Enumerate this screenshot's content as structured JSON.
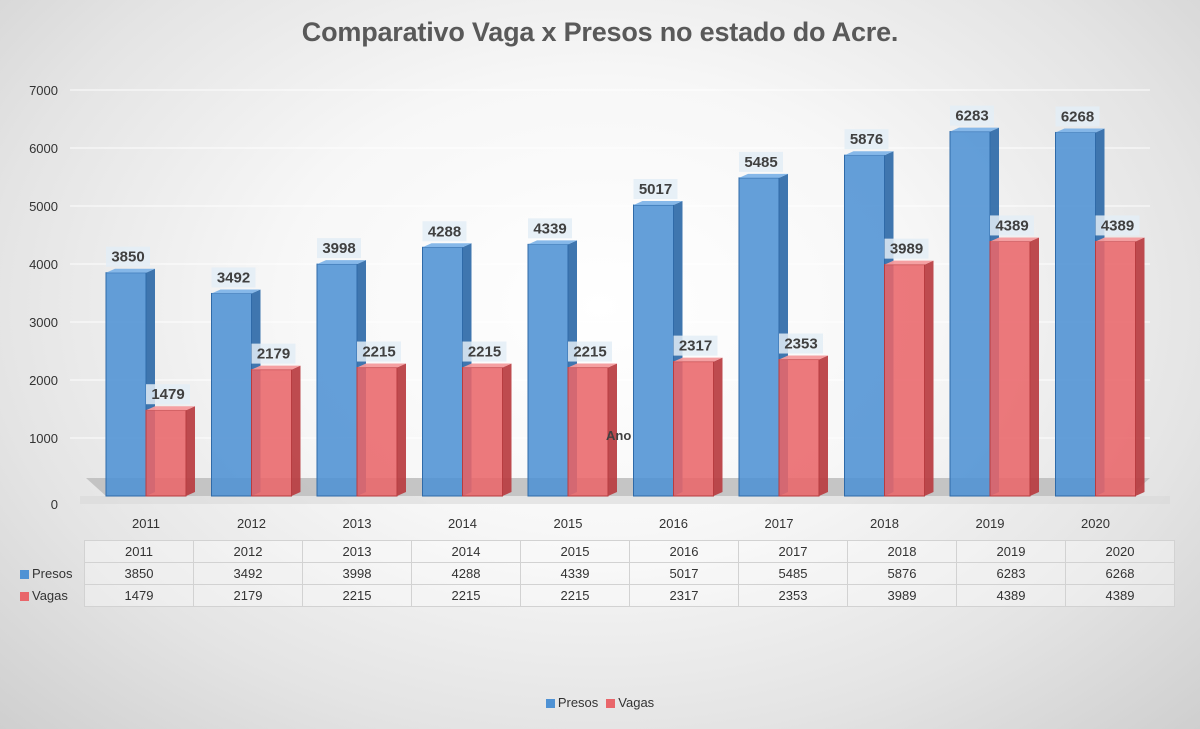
{
  "colors": {
    "presos_front": "#4f92d4",
    "presos_side": "#2f6aa8",
    "presos_top": "#7fb4e8",
    "vagas_front": "#e9666a",
    "vagas_side": "#b83c40",
    "vagas_top": "#f49b9d",
    "floor": "#bcbcbc"
  },
  "legend": {
    "items": [
      {
        "label": "Presos",
        "icon": "blue-square-icon"
      },
      {
        "label": "Vagas",
        "icon": "red-square-icon"
      }
    ]
  },
  "table": {
    "header": [
      "2011",
      "2012",
      "2013",
      "2014",
      "2015",
      "2016",
      "2017",
      "2018",
      "2019",
      "2020"
    ],
    "rows": [
      {
        "name": "Presos",
        "values": [
          "3850",
          "3492",
          "3998",
          "4288",
          "4339",
          "5017",
          "5485",
          "5876",
          "6283",
          "6268"
        ]
      },
      {
        "name": "Vagas",
        "values": [
          "1479",
          "2179",
          "2215",
          "2215",
          "2215",
          "2317",
          "2353",
          "3989",
          "4389",
          "4389"
        ]
      }
    ]
  },
  "chart_data": {
    "type": "bar",
    "title": "Comparativo Vaga x Presos no estado do Acre.",
    "xlabel": "Ano",
    "ylabel": "",
    "ylim": [
      0,
      7000
    ],
    "yticks": [
      0,
      1000,
      2000,
      3000,
      4000,
      5000,
      6000,
      7000
    ],
    "grid": true,
    "legend_position": "bottom-center",
    "categories": [
      "2011",
      "2012",
      "2013",
      "2014",
      "2015",
      "2016",
      "2017",
      "2018",
      "2019",
      "2020"
    ],
    "series": [
      {
        "name": "Presos",
        "values": [
          3850,
          3492,
          3998,
          4288,
          4339,
          5017,
          5485,
          5876,
          6283,
          6268
        ]
      },
      {
        "name": "Vagas",
        "values": [
          1479,
          2179,
          2215,
          2215,
          2215,
          2317,
          2353,
          3989,
          4389,
          4389
        ]
      }
    ]
  }
}
